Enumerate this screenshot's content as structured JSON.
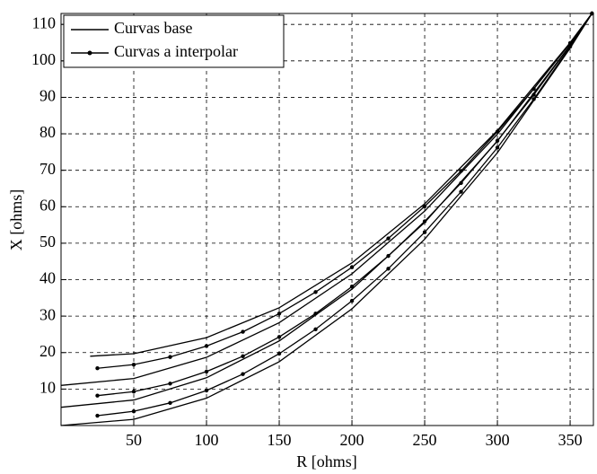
{
  "chart_data": {
    "type": "line",
    "xlabel": "R [ohms]",
    "ylabel": "X [ohms]",
    "xlim": [
      0,
      366
    ],
    "ylim": [
      0,
      113
    ],
    "xticks": [
      50,
      100,
      150,
      200,
      250,
      300,
      350
    ],
    "yticks": [
      10,
      20,
      30,
      40,
      50,
      60,
      70,
      80,
      90,
      100,
      110
    ],
    "grid": true,
    "legend": "upper left",
    "series": [
      {
        "name": "Curvas base",
        "color": "#000000",
        "marker": "none",
        "curves": [
          {
            "x": [
              20,
              50,
              100,
              150,
              200,
              250,
              300,
              350,
              365
            ],
            "values": [
              19,
              19.7,
              24.1,
              32.3,
              44.6,
              60.8,
              80.9,
              105.0,
              113
            ]
          },
          {
            "x": [
              0,
              50,
              100,
              150,
              200,
              250,
              300,
              350,
              365
            ],
            "values": [
              11,
              12.9,
              18.7,
              28.2,
              41.6,
              58.8,
              79.9,
              104.8,
              113
            ]
          },
          {
            "x": [
              0,
              50,
              100,
              150,
              200,
              250,
              300,
              350,
              365
            ],
            "values": [
              5,
              7.0,
              13.1,
              23.2,
              37.4,
              55.7,
              78.0,
              104.3,
              113
            ]
          },
          {
            "x": [
              0,
              50,
              100,
              150,
              200,
              250,
              300,
              350,
              365
            ],
            "values": [
              0,
              1.7,
              7.5,
              17.5,
              32.0,
              51.1,
              74.8,
              103.5,
              113
            ]
          }
        ]
      },
      {
        "name": "Curvas a interpolar",
        "color": "#000000",
        "marker": "dot",
        "curves": [
          {
            "x": [
              25,
              50,
              75,
              100,
              125,
              150,
              175,
              200,
              225,
              250,
              275,
              300,
              325,
              350,
              365
            ],
            "values": [
              15.7,
              16.7,
              18.8,
              21.8,
              25.7,
              30.7,
              36.6,
              43.4,
              51.3,
              60.1,
              69.8,
              80.6,
              92.3,
              104.9,
              113
            ]
          },
          {
            "x": [
              25,
              50,
              75,
              100,
              125,
              150,
              175,
              200,
              225,
              250,
              275,
              300,
              325,
              350,
              365
            ],
            "values": [
              8.2,
              9.3,
              11.5,
              14.8,
              19.0,
              24.3,
              30.7,
              38.1,
              46.5,
              56.0,
              66.5,
              78.1,
              90.7,
              104.3,
              113
            ]
          },
          {
            "x": [
              25,
              50,
              75,
              100,
              125,
              150,
              175,
              200,
              225,
              250,
              275,
              300,
              325,
              350,
              365
            ],
            "values": [
              2.7,
              3.9,
              6.2,
              9.6,
              14.1,
              19.7,
              26.4,
              34.2,
              43.0,
              53.0,
              64.1,
              76.2,
              89.5,
              103.9,
              113
            ]
          }
        ]
      }
    ]
  }
}
